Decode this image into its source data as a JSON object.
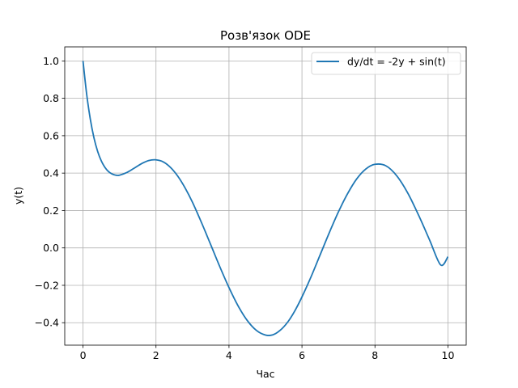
{
  "chart_data": {
    "type": "line",
    "title": "Розв'язок ODE",
    "xlabel": "Час",
    "ylabel": "y(t)",
    "xlim": [
      -0.5,
      10.5
    ],
    "ylim": [
      -0.52,
      1.075
    ],
    "xticks": [
      0,
      2,
      4,
      6,
      8,
      10
    ],
    "xtick_labels": [
      "0",
      "2",
      "4",
      "6",
      "8",
      "10"
    ],
    "yticks": [
      -0.4,
      -0.2,
      0.0,
      0.2,
      0.4,
      0.6,
      0.8,
      1.0
    ],
    "ytick_labels": [
      "−0.4",
      "−0.2",
      "0.0",
      "0.2",
      "0.4",
      "0.6",
      "0.8",
      "1.0"
    ],
    "grid": true,
    "legend_position": "top-right",
    "series": [
      {
        "name": "dy/dt = -2y + sin(t)",
        "color": "#1f77b4",
        "x": [
          0,
          0.1,
          0.2,
          0.3,
          0.4,
          0.5,
          0.6,
          0.7,
          0.8,
          0.9,
          1.0,
          1.2,
          1.4,
          1.6,
          1.8,
          2.0,
          2.2,
          2.4,
          2.6,
          2.8,
          3.0,
          3.25,
          3.5,
          3.75,
          4.0,
          4.25,
          4.5,
          4.75,
          5.0,
          5.2,
          5.4,
          5.6,
          5.8,
          6.0,
          6.25,
          6.5,
          6.75,
          7.0,
          7.25,
          7.5,
          7.75,
          8.0,
          8.3,
          8.6,
          8.9,
          9.2,
          9.5,
          9.8,
          10.0
        ],
        "y": [
          1.0,
          0.823,
          0.689,
          0.589,
          0.517,
          0.466,
          0.431,
          0.408,
          0.395,
          0.389,
          0.389,
          0.403,
          0.426,
          0.45,
          0.467,
          0.471,
          0.46,
          0.43,
          0.383,
          0.32,
          0.244,
          0.134,
          0.017,
          -0.101,
          -0.212,
          -0.31,
          -0.388,
          -0.441,
          -0.466,
          -0.465,
          -0.441,
          -0.399,
          -0.338,
          -0.262,
          -0.154,
          -0.036,
          0.082,
          0.193,
          0.29,
          0.369,
          0.422,
          0.447,
          0.439,
          0.385,
          0.293,
          0.173,
          0.041,
          -0.091,
          -0.047
        ]
      }
    ]
  }
}
